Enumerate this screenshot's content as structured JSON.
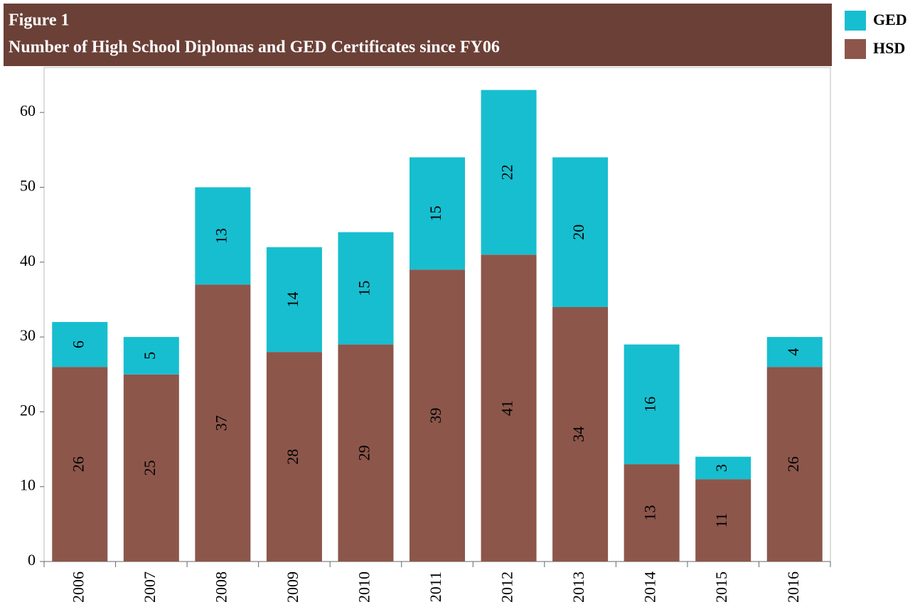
{
  "chart_data": {
    "type": "stacked_bar",
    "title": "Figure 1",
    "subtitle": "Number of High School Diplomas and GED Certificates since FY06",
    "categories": [
      "2006",
      "2007",
      "2008",
      "2009",
      "2010",
      "2011",
      "2012",
      "2013",
      "2014",
      "2015",
      "2016"
    ],
    "series": [
      {
        "name": "HSD",
        "color": "#8c564b",
        "values": [
          26,
          25,
          37,
          28,
          29,
          39,
          41,
          34,
          13,
          11,
          26
        ]
      },
      {
        "name": "GED",
        "color": "#17becf",
        "values": [
          6,
          5,
          13,
          14,
          15,
          15,
          22,
          20,
          16,
          3,
          4
        ]
      }
    ],
    "ylim": [
      0,
      66
    ],
    "yticks": [
      0,
      10,
      20,
      30,
      40,
      50,
      60
    ],
    "legend": "right",
    "banner_color": "#6b4037"
  }
}
